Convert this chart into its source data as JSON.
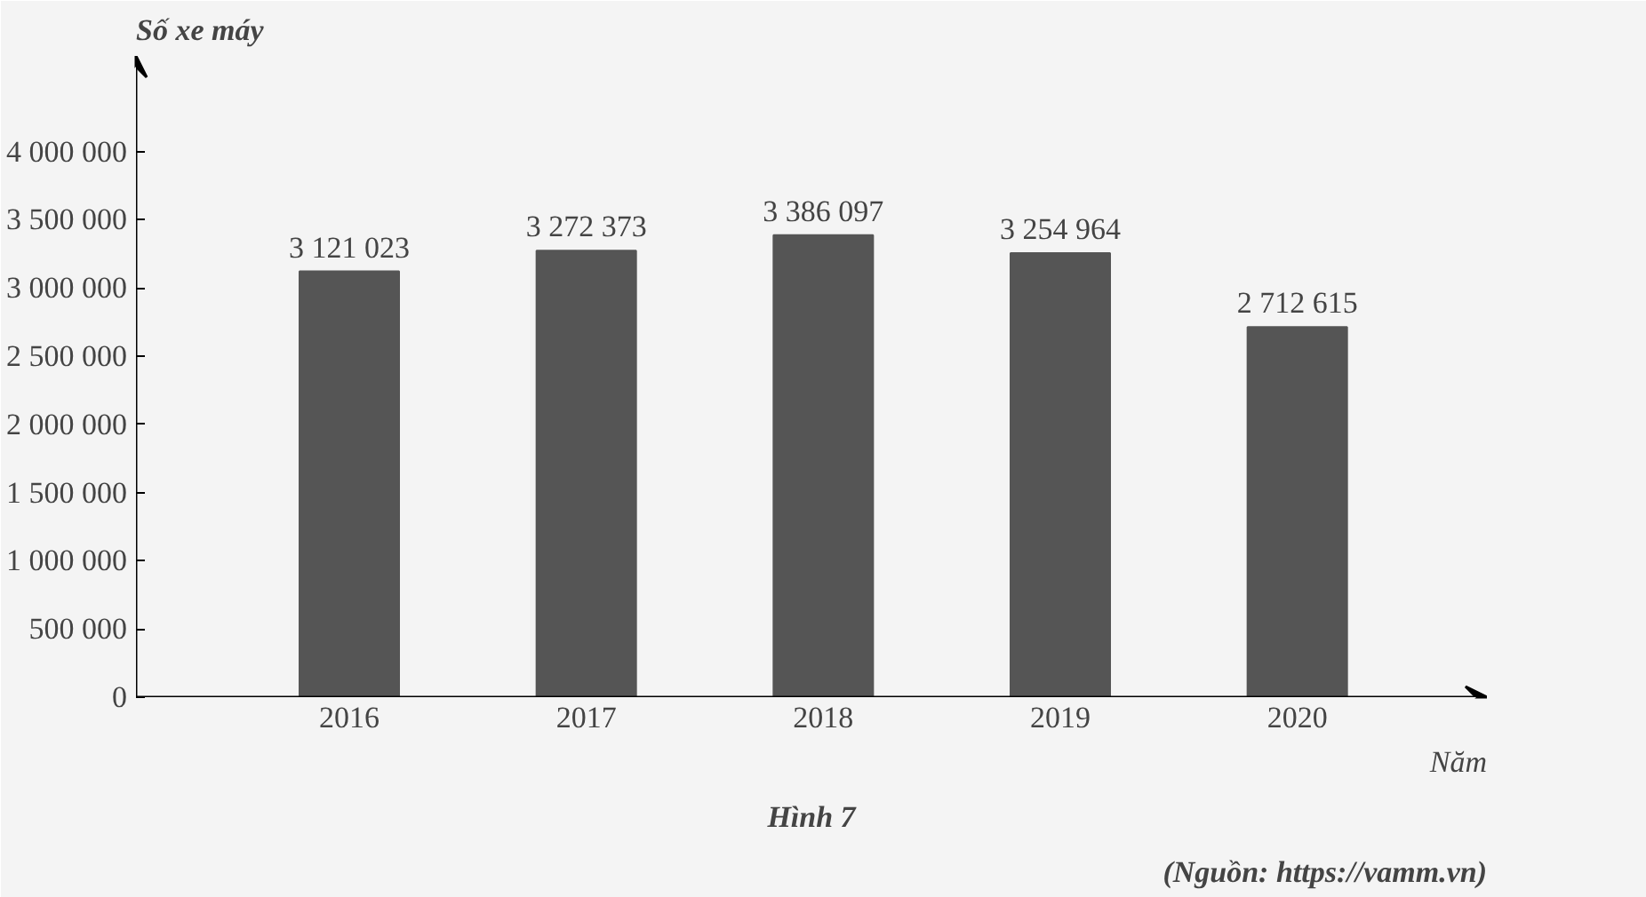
{
  "chart_data": {
    "type": "bar",
    "title": "Hình 7",
    "ylabel": "Số xe máy",
    "xlabel": "Năm",
    "categories": [
      "2016",
      "2017",
      "2018",
      "2019",
      "2020"
    ],
    "values": [
      3121023,
      3272373,
      3386097,
      3254964,
      2712615
    ],
    "value_labels": [
      "3 121 023",
      "3 272 373",
      "3 386 097",
      "3 254 964",
      "2 712 615"
    ],
    "color": "#555555",
    "ylim": [
      0,
      4700000
    ],
    "yticks": [
      0,
      {
        "value": 500000,
        "label": "500 000"
      },
      {
        "value": 1000000,
        "label": "1 000 000"
      },
      {
        "value": 1500000,
        "label": "1 500 000"
      },
      {
        "value": 2000000,
        "label": "2 000 000"
      },
      {
        "value": 2500000,
        "label": "2 500 000"
      },
      {
        "value": 3000000,
        "label": "3 000 000"
      },
      {
        "value": 3500000,
        "label": "3 500 000"
      },
      {
        "value": 4000000,
        "label": "4 000 000"
      }
    ],
    "annotations": [
      "(Nguồn: https://vamm.vn)"
    ],
    "grid": false
  }
}
